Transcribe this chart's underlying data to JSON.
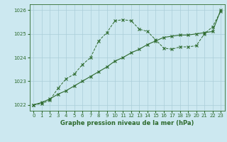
{
  "line1_x": [
    0,
    1,
    2,
    3,
    4,
    5,
    6,
    7,
    8,
    9,
    10,
    11,
    12,
    13,
    14,
    15,
    16,
    17,
    18,
    19,
    20,
    21,
    22,
    23
  ],
  "line1_y": [
    1022.0,
    1022.05,
    1022.2,
    1022.7,
    1023.1,
    1023.3,
    1023.7,
    1024.0,
    1024.7,
    1025.05,
    1025.55,
    1025.6,
    1025.55,
    1025.2,
    1025.1,
    1024.75,
    1024.4,
    1024.35,
    1024.45,
    1024.45,
    1024.5,
    1025.0,
    1025.3,
    1025.95
  ],
  "line2_x": [
    0,
    1,
    2,
    3,
    4,
    5,
    6,
    7,
    8,
    9,
    10,
    11,
    12,
    13,
    14,
    15,
    16,
    17,
    18,
    19,
    20,
    21,
    22,
    23
  ],
  "line2_y": [
    1022.0,
    1022.1,
    1022.25,
    1022.45,
    1022.6,
    1022.8,
    1023.0,
    1023.2,
    1023.4,
    1023.6,
    1023.85,
    1024.0,
    1024.2,
    1024.35,
    1024.55,
    1024.7,
    1024.85,
    1024.9,
    1024.95,
    1024.95,
    1025.0,
    1025.05,
    1025.1,
    1026.0
  ],
  "line_color": "#2d6a2d",
  "bg_color": "#cce8f0",
  "grid_color": "#aacdd8",
  "xlabel": "Graphe pression niveau de la mer (hPa)",
  "ylim": [
    1021.75,
    1026.25
  ],
  "xlim": [
    -0.5,
    23.5
  ],
  "yticks": [
    1022,
    1023,
    1024,
    1025,
    1026
  ],
  "xticks": [
    0,
    1,
    2,
    3,
    4,
    5,
    6,
    7,
    8,
    9,
    10,
    11,
    12,
    13,
    14,
    15,
    16,
    17,
    18,
    19,
    20,
    21,
    22,
    23
  ],
  "tick_fontsize": 5.0,
  "xlabel_fontsize": 6.0
}
